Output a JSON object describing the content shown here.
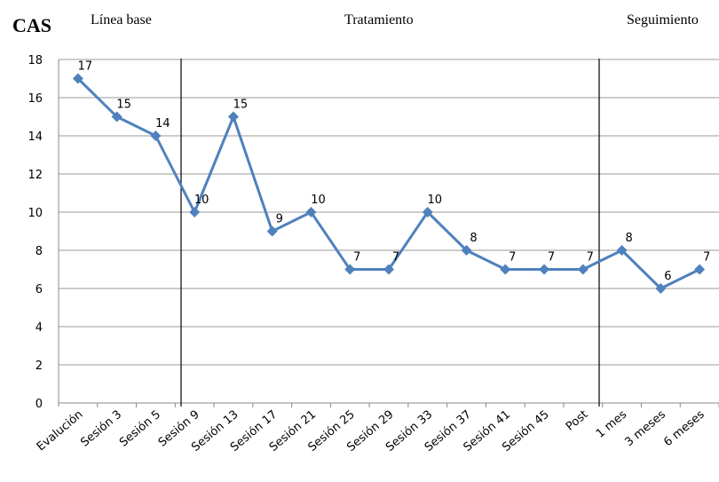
{
  "chart_data": {
    "type": "line",
    "title": "CAS",
    "annotations": [
      "Línea base",
      "Tratamiento",
      "Seguimiento"
    ],
    "categories": [
      "Evalución",
      "Sesión 3",
      "Sesión 5",
      "Sesión 9",
      "Sesión 13",
      "Sesión 17",
      "Sesión 21",
      "Sesión 25",
      "Sesión 29",
      "Sesión 33",
      "Sesión 37",
      "Sesión 41",
      "Sesión 45",
      "Post",
      "1 mes",
      "3 meses",
      "6 meses"
    ],
    "values": [
      17,
      15,
      14,
      10,
      15,
      9,
      10,
      7,
      7,
      10,
      8,
      7,
      7,
      7,
      8,
      6,
      7
    ],
    "color": "#4f81bd",
    "ylim": [
      0,
      18
    ],
    "yticks": [
      0,
      2,
      4,
      6,
      8,
      10,
      12,
      14,
      16,
      18
    ],
    "grid": true
  }
}
